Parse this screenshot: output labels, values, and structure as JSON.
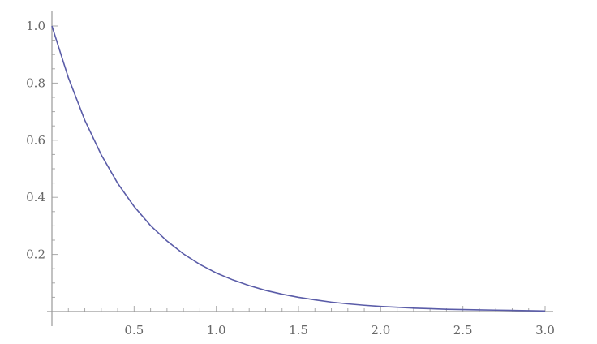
{
  "chart_data": {
    "type": "line",
    "title": "",
    "xlabel": "",
    "ylabel": "",
    "xlim": [
      0,
      3.0
    ],
    "ylim": [
      0,
      1.0
    ],
    "grid": false,
    "x_ticks": [
      "0.5",
      "1.0",
      "1.5",
      "2.0",
      "2.5",
      "3.0"
    ],
    "y_ticks": [
      "0.2",
      "0.4",
      "0.6",
      "0.8",
      "1.0"
    ],
    "line_color": "#5a5ca8",
    "series": [
      {
        "x": [
          0,
          0.1,
          0.2,
          0.3,
          0.4,
          0.5,
          0.6,
          0.7,
          0.8,
          0.9,
          1.0,
          1.1,
          1.2,
          1.3,
          1.4,
          1.5,
          1.6,
          1.7,
          1.8,
          1.9,
          2.0,
          2.1,
          2.2,
          2.3,
          2.4,
          2.5,
          2.6,
          2.7,
          2.8,
          2.9,
          3.0
        ],
        "y": [
          1,
          0.819,
          0.67,
          0.549,
          0.449,
          0.368,
          0.301,
          0.247,
          0.202,
          0.165,
          0.135,
          0.111,
          0.091,
          0.074,
          0.061,
          0.05,
          0.041,
          0.033,
          0.027,
          0.022,
          0.018,
          0.015,
          0.012,
          0.01,
          0.008,
          0.007,
          0.006,
          0.005,
          0.004,
          0.003,
          0.002
        ]
      }
    ]
  }
}
